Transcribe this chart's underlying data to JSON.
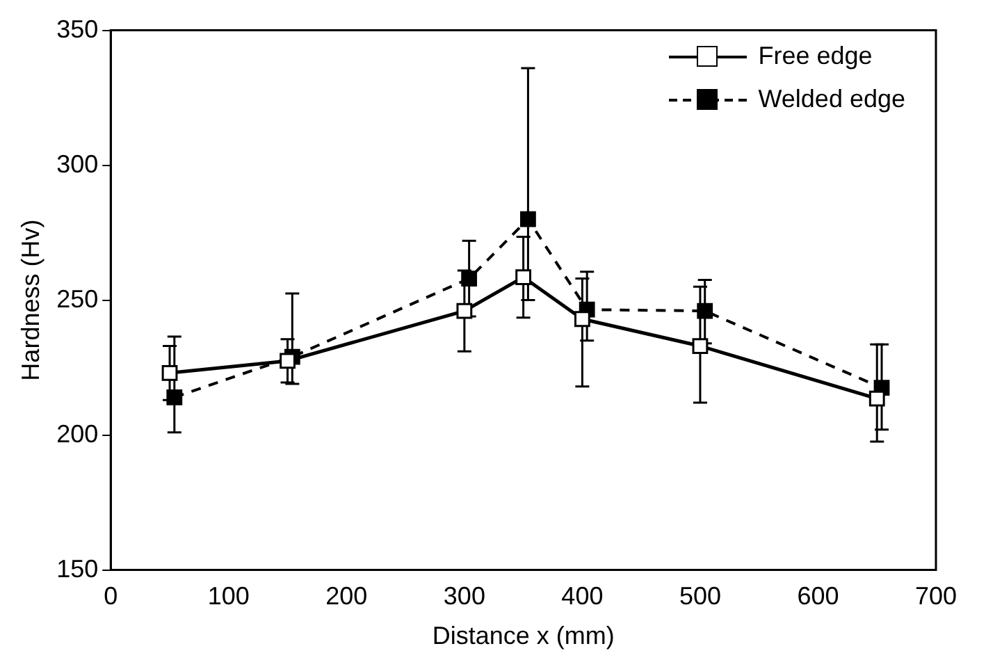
{
  "chart_data": {
    "type": "line",
    "xlabel": "Distance x (mm)",
    "ylabel": "Hardness (Hv)",
    "x": [
      50,
      150,
      300,
      350,
      400,
      500,
      650
    ],
    "xlim": [
      0,
      700
    ],
    "xticks": [
      0,
      100,
      200,
      300,
      400,
      500,
      600,
      700
    ],
    "ylim": [
      150,
      350
    ],
    "yticks": [
      150,
      200,
      250,
      300,
      350
    ],
    "grid": false,
    "legend": "top right",
    "marker": "square",
    "series": [
      {
        "name": "Free edge",
        "color": "#000000",
        "line_style": "solid",
        "values": [
          223,
          227.5,
          246,
          258.5,
          243,
          233,
          213.5
        ],
        "errors": [
          10,
          8,
          15,
          15,
          [
            218,
            258
          ],
          [
            212,
            255
          ],
          [
            197.6,
            233.6
          ]
        ]
      },
      {
        "name": "Welded edge",
        "color": "#000000",
        "line_style": "dashed",
        "x": [
          54,
          154,
          304,
          354,
          404,
          504,
          654
        ],
        "values": [
          214,
          229,
          258,
          280,
          246.5,
          246,
          217.5
        ],
        "errors": [
          [
            201,
            236.5
          ],
          [
            219,
            252.5
          ],
          [
            244,
            272
          ],
          [
            250,
            336
          ],
          [
            235,
            260.5
          ],
          [
            234,
            257.5
          ],
          [
            202,
            233.6
          ]
        ]
      }
    ]
  }
}
